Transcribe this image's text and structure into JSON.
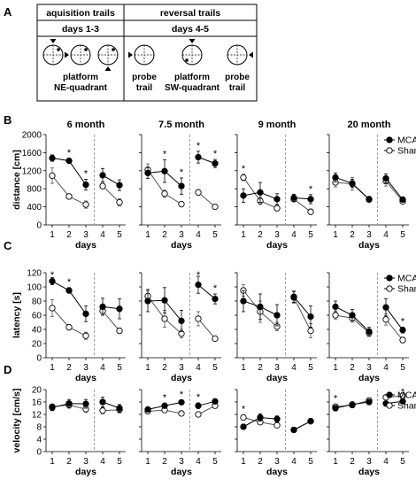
{
  "figure": {
    "panel_labels": [
      "A",
      "B",
      "C",
      "D"
    ],
    "legend": {
      "mcao": "MCAO",
      "sham": "Sham"
    }
  },
  "schematic": {
    "header_left": "aquisition trails",
    "header_right": "reversal trails",
    "sub_left": "days 1-3",
    "sub_right": "days 4-5",
    "label_platform_ne": "platform NE-quadrant",
    "label_probe_1": "probe trail",
    "label_platform_sw": "platform SW-quadrant",
    "label_probe_2": "probe trail"
  },
  "chart_data": [
    {
      "type": "line",
      "panel": "B",
      "title": "6 month",
      "xlabel": "days",
      "ylabel": "distance [cm]",
      "x": [
        1,
        2,
        3,
        4,
        5
      ],
      "ylim": [
        0,
        2000
      ],
      "yticks": [
        0,
        400,
        800,
        1200,
        1600,
        2000
      ],
      "reversal_line_x": 3.5,
      "series": [
        {
          "name": "MCAO",
          "values": [
            1480,
            1420,
            890,
            1100,
            880
          ],
          "errors": [
            70,
            50,
            120,
            150,
            120
          ]
        },
        {
          "name": "Sham",
          "values": [
            1090,
            630,
            450,
            860,
            500
          ],
          "errors": [
            170,
            60,
            80,
            60,
            80
          ]
        }
      ],
      "significance_days": [
        2,
        3
      ]
    },
    {
      "type": "line",
      "panel": "B",
      "title": "7.5 month",
      "xlabel": "days",
      "ylabel": "",
      "x": [
        1,
        2,
        3,
        4,
        5
      ],
      "ylim": [
        0,
        2000
      ],
      "yticks": [
        0,
        400,
        800,
        1200,
        1600,
        2000
      ],
      "reversal_line_x": 3.5,
      "series": [
        {
          "name": "MCAO",
          "values": [
            1150,
            1190,
            860,
            1500,
            1360
          ],
          "errors": [
            120,
            250,
            180,
            130,
            90
          ]
        },
        {
          "name": "Sham",
          "values": [
            1220,
            690,
            460,
            720,
            400
          ],
          "errors": [
            130,
            80,
            50,
            60,
            40
          ]
        }
      ],
      "significance_days": [
        2,
        3,
        4,
        5
      ]
    },
    {
      "type": "line",
      "panel": "B",
      "title": "9 month",
      "xlabel": "days",
      "ylabel": "",
      "x": [
        1,
        2,
        3,
        4,
        5
      ],
      "ylim": [
        0,
        2000
      ],
      "yticks": [
        0,
        400,
        800,
        1200,
        1600,
        2000
      ],
      "reversal_line_x": 3.5,
      "series": [
        {
          "name": "MCAO",
          "values": [
            650,
            720,
            570,
            600,
            570
          ],
          "errors": [
            150,
            220,
            120,
            80,
            100
          ]
        },
        {
          "name": "Sham",
          "values": [
            1050,
            530,
            370,
            570,
            290
          ],
          "errors": [
            70,
            80,
            60,
            50,
            60
          ]
        }
      ],
      "significance_days": [
        1,
        5
      ]
    },
    {
      "type": "line",
      "panel": "B",
      "title": "20 month",
      "xlabel": "days",
      "ylabel": "",
      "x": [
        1,
        2,
        3,
        4,
        5
      ],
      "ylim": [
        0,
        2000
      ],
      "yticks": [
        0,
        400,
        800,
        1200,
        1600,
        2000
      ],
      "reversal_line_x": 3.5,
      "series": [
        {
          "name": "MCAO",
          "values": [
            1050,
            920,
            570,
            1030,
            560
          ],
          "errors": [
            100,
            90,
            60,
            100,
            50
          ]
        },
        {
          "name": "Sham",
          "values": [
            940,
            910,
            560,
            970,
            520
          ],
          "errors": [
            100,
            140,
            50,
            110,
            50
          ]
        }
      ],
      "significance_days": []
    },
    {
      "type": "line",
      "panel": "C",
      "title": "",
      "xlabel": "days",
      "ylabel": "latency [s]",
      "x": [
        1,
        2,
        3,
        4,
        5
      ],
      "ylim": [
        0,
        120
      ],
      "yticks": [
        0,
        20,
        40,
        60,
        80,
        100,
        120
      ],
      "reversal_line_x": 3.5,
      "series": [
        {
          "name": "MCAO",
          "values": [
            108,
            95,
            62,
            72,
            69
          ],
          "errors": [
            5,
            4,
            11,
            12,
            14
          ]
        },
        {
          "name": "Sham",
          "values": [
            70,
            43,
            31,
            66,
            38
          ],
          "errors": [
            12,
            4,
            5,
            6,
            4
          ]
        }
      ],
      "significance_days": [
        1,
        2
      ]
    },
    {
      "type": "line",
      "panel": "C",
      "title": "",
      "xlabel": "days",
      "ylabel": "",
      "x": [
        1,
        2,
        3,
        4,
        5
      ],
      "ylim": [
        0,
        120
      ],
      "yticks": [
        0,
        20,
        40,
        60,
        80,
        100,
        120
      ],
      "reversal_line_x": 3.5,
      "series": [
        {
          "name": "MCAO",
          "values": [
            80,
            81,
            52,
            103,
            83
          ],
          "errors": [
            15,
            18,
            15,
            12,
            7
          ]
        },
        {
          "name": "Sham",
          "values": [
            87,
            55,
            34,
            55,
            27
          ],
          "errors": [
            10,
            12,
            6,
            10,
            3
          ]
        }
      ],
      "significance_days": [
        4,
        5
      ]
    },
    {
      "type": "line",
      "panel": "C",
      "title": "",
      "xlabel": "days",
      "ylabel": "",
      "x": [
        1,
        2,
        3,
        4,
        5
      ],
      "ylim": [
        0,
        120
      ],
      "yticks": [
        0,
        20,
        40,
        60,
        80,
        100,
        120
      ],
      "reversal_line_x": 3.5,
      "series": [
        {
          "name": "MCAO",
          "values": [
            80,
            72,
            60,
            86,
            58
          ],
          "errors": [
            15,
            18,
            15,
            8,
            15
          ]
        },
        {
          "name": "Sham",
          "values": [
            95,
            65,
            44,
            85,
            38
          ],
          "errors": [
            8,
            15,
            6,
            8,
            10
          ]
        }
      ],
      "significance_days": []
    },
    {
      "type": "line",
      "panel": "C",
      "title": "",
      "xlabel": "days",
      "ylabel": "",
      "x": [
        1,
        2,
        3,
        4,
        5
      ],
      "ylim": [
        0,
        120
      ],
      "yticks": [
        0,
        20,
        40,
        60,
        80,
        100,
        120
      ],
      "reversal_line_x": 3.5,
      "series": [
        {
          "name": "MCAO",
          "values": [
            72,
            60,
            37,
            71,
            39
          ],
          "errors": [
            8,
            8,
            6,
            12,
            4
          ]
        },
        {
          "name": "Sham",
          "values": [
            60,
            56,
            35,
            54,
            25
          ],
          "errors": [
            6,
            6,
            5,
            8,
            4
          ]
        }
      ],
      "significance_days": [
        5
      ]
    },
    {
      "type": "line",
      "panel": "D",
      "title": "",
      "xlabel": "days",
      "ylabel": "velocity [cm/s]",
      "x": [
        1,
        2,
        3,
        4,
        5
      ],
      "ylim": [
        0,
        20
      ],
      "yticks": [
        0,
        4,
        8,
        12,
        16,
        20
      ],
      "reversal_line_x": 3.5,
      "series": [
        {
          "name": "MCAO",
          "values": [
            14.2,
            15.5,
            15.4,
            16.0,
            14.0
          ],
          "errors": [
            1.0,
            1.3,
            1.4,
            1.6,
            1.2
          ]
        },
        {
          "name": "Sham",
          "values": [
            14.5,
            15.0,
            13.7,
            13.2,
            13.5
          ],
          "errors": [
            0.8,
            1.0,
            1.0,
            1.0,
            1.0
          ]
        }
      ],
      "significance_days": []
    },
    {
      "type": "line",
      "panel": "D",
      "title": "",
      "xlabel": "days",
      "ylabel": "",
      "x": [
        1,
        2,
        3,
        4,
        5
      ],
      "ylim": [
        0,
        20
      ],
      "yticks": [
        0,
        4,
        8,
        12,
        16,
        20
      ],
      "reversal_line_x": 3.5,
      "series": [
        {
          "name": "MCAO",
          "values": [
            13.6,
            14.8,
            15.9,
            14.8,
            16.2
          ],
          "errors": [
            0.8,
            0.8,
            0.7,
            0.9,
            0.8
          ]
        },
        {
          "name": "Sham",
          "values": [
            13.0,
            13.4,
            12.3,
            12.0,
            14.8
          ],
          "errors": [
            0.7,
            0.8,
            0.6,
            0.7,
            0.8
          ]
        }
      ],
      "significance_days": [
        2,
        3,
        4
      ]
    },
    {
      "type": "line",
      "panel": "D",
      "title": "",
      "xlabel": "days",
      "ylabel": "",
      "x": [
        1,
        2,
        3,
        4,
        5
      ],
      "ylim": [
        0,
        20
      ],
      "yticks": [
        0,
        4,
        8,
        12,
        16,
        20
      ],
      "reversal_line_x": 3.5,
      "series": [
        {
          "name": "MCAO",
          "values": [
            8.0,
            11.0,
            10.5,
            7.0,
            9.8
          ],
          "errors": [
            0.8,
            1.2,
            1.0,
            0.5,
            0.8
          ]
        },
        {
          "name": "Sham",
          "values": [
            11.0,
            9.5,
            8.5,
            7.0,
            9.8
          ],
          "errors": [
            0.8,
            0.8,
            0.6,
            0.5,
            0.8
          ]
        }
      ],
      "significance_days": [
        1
      ]
    },
    {
      "type": "line",
      "panel": "D",
      "title": "",
      "xlabel": "days",
      "ylabel": "",
      "x": [
        1,
        2,
        3,
        4,
        5
      ],
      "ylim": [
        0,
        20
      ],
      "yticks": [
        0,
        4,
        8,
        12,
        16,
        20
      ],
      "reversal_line_x": 3.5,
      "series": [
        {
          "name": "MCAO",
          "values": [
            14.0,
            15.2,
            16.0,
            15.5,
            16.2
          ],
          "errors": [
            0.8,
            0.8,
            0.8,
            0.8,
            0.8
          ]
        },
        {
          "name": "Sham",
          "values": [
            14.5,
            15.0,
            16.5,
            17.5,
            18.0
          ],
          "errors": [
            0.8,
            0.8,
            0.8,
            0.8,
            1.0
          ]
        }
      ],
      "significance_days": [
        1,
        5
      ]
    }
  ]
}
